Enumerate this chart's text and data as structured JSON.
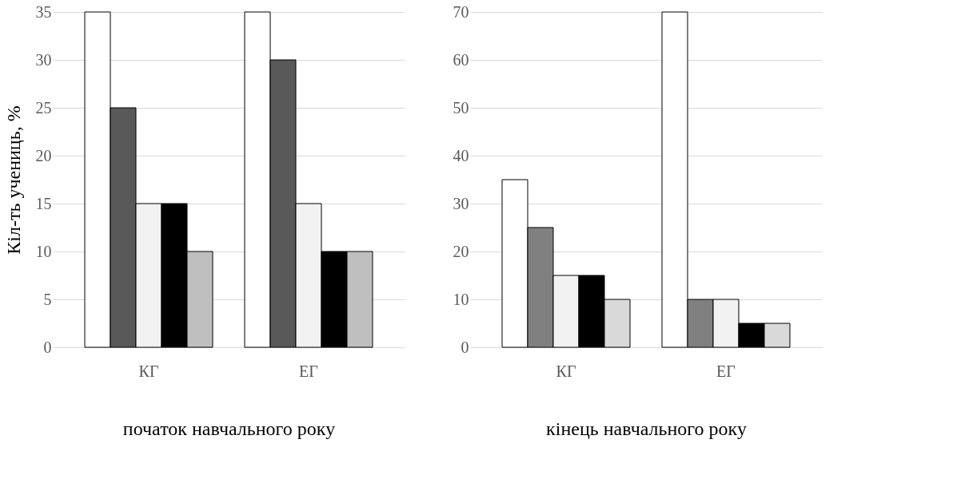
{
  "chart_data": [
    {
      "type": "bar",
      "categories": [
        "КГ",
        "ЕГ"
      ],
      "xlabel": "початок навчального року",
      "ylabel": "Кіл-ть учениць, %",
      "ylim": [
        0,
        35
      ],
      "yticks": [
        0,
        5,
        10,
        15,
        20,
        25,
        30,
        35
      ],
      "grid": "y",
      "legend": false,
      "series": [
        {
          "color": "#ffffff",
          "values": [
            35,
            35
          ]
        },
        {
          "color": "#595959",
          "values": [
            25,
            30
          ]
        },
        {
          "color": "#f2f2f2",
          "values": [
            15,
            15
          ]
        },
        {
          "color": "#000000",
          "values": [
            15,
            10
          ]
        },
        {
          "color": "#bfbfbf",
          "values": [
            10,
            10
          ]
        }
      ]
    },
    {
      "type": "bar",
      "categories": [
        "КГ",
        "ЕГ"
      ],
      "xlabel": "кінець навчального року",
      "ylim": [
        0,
        70
      ],
      "yticks": [
        0,
        10,
        20,
        30,
        40,
        50,
        60,
        70
      ],
      "grid": "y",
      "legend": false,
      "series": [
        {
          "color": "#ffffff",
          "values": [
            35,
            70
          ]
        },
        {
          "color": "#808080",
          "values": [
            25,
            10
          ]
        },
        {
          "color": "#f2f2f2",
          "values": [
            15,
            10
          ]
        },
        {
          "color": "#000000",
          "values": [
            15,
            5
          ]
        },
        {
          "color": "#d9d9d9",
          "values": [
            10,
            5
          ]
        }
      ]
    }
  ]
}
